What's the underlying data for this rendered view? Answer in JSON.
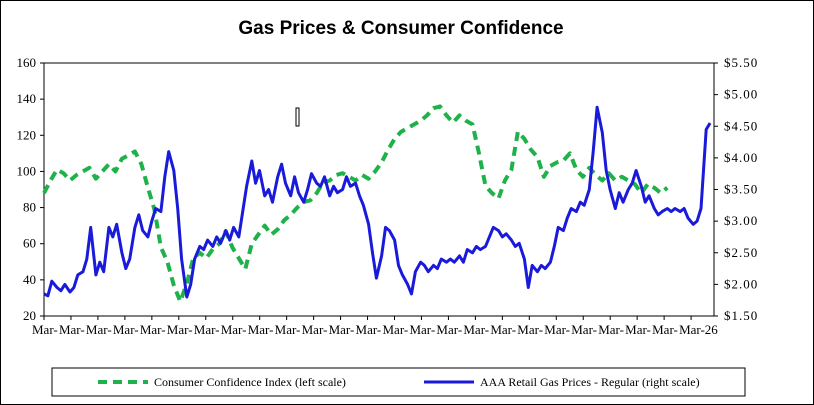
{
  "chart_data": {
    "type": "line",
    "title": "Gas Prices & Consumer Confidence",
    "legend_position": "bottom",
    "grid": false,
    "x_tick_labels": [
      "Mar-",
      "Mar-",
      "Mar-",
      "Mar-",
      "Mar-",
      "Mar-",
      "Mar-",
      "Mar-",
      "Mar-",
      "Mar-",
      "Mar-",
      "Mar-",
      "Mar-",
      "Mar-",
      "Mar-",
      "Mar-",
      "Mar-",
      "Mar-",
      "Mar-",
      "Mar-",
      "Mar-",
      "Mar-",
      "Mar-",
      "Mar-",
      "Mar-26"
    ],
    "y_left": {
      "min": 20,
      "max": 160,
      "ticks": [
        "20",
        "40",
        "60",
        "80",
        "100",
        "120",
        "140",
        "160"
      ]
    },
    "y_right": {
      "min": 1.5,
      "max": 5.5,
      "ticks": [
        "$1.50",
        "$2.00",
        "$2.50",
        "$3.00",
        "$3.50",
        "$4.00",
        "$4.50",
        "$5.00",
        "$5.50"
      ]
    },
    "series": [
      {
        "name": "Consumer Confidence Index (left scale)",
        "axis": "left",
        "color": "#1fb24a",
        "style": "dashed",
        "points": [
          [
            0,
            88
          ],
          [
            0.5,
            95
          ],
          [
            1,
            101
          ],
          [
            1.5,
            99
          ],
          [
            2,
            95
          ],
          [
            2.5,
            98
          ],
          [
            3,
            100
          ],
          [
            3.5,
            102
          ],
          [
            4,
            96
          ],
          [
            4.5,
            100
          ],
          [
            5,
            104
          ],
          [
            5.5,
            100
          ],
          [
            6,
            107
          ],
          [
            6.5,
            109
          ],
          [
            7,
            111
          ],
          [
            7.5,
            104
          ],
          [
            8,
            91
          ],
          [
            8.5,
            79
          ],
          [
            9,
            58
          ],
          [
            9.5,
            50
          ],
          [
            10,
            37
          ],
          [
            10.5,
            28
          ],
          [
            11,
            38
          ],
          [
            11.5,
            52
          ],
          [
            12,
            55
          ],
          [
            12.5,
            52
          ],
          [
            13,
            57
          ],
          [
            13.5,
            60
          ],
          [
            14,
            67
          ],
          [
            14.5,
            58
          ],
          [
            15,
            52
          ],
          [
            15.5,
            46
          ],
          [
            16,
            60
          ],
          [
            16.5,
            65
          ],
          [
            17,
            70
          ],
          [
            17.5,
            65
          ],
          [
            18,
            68
          ],
          [
            18.5,
            73
          ],
          [
            19,
            76
          ],
          [
            19.5,
            80
          ],
          [
            20,
            83
          ],
          [
            20.5,
            84
          ],
          [
            21,
            88
          ],
          [
            21.5,
            94
          ],
          [
            22,
            95
          ],
          [
            22.5,
            98
          ],
          [
            23,
            99
          ],
          [
            23.5,
            97
          ],
          [
            24,
            95
          ],
          [
            24.5,
            98
          ],
          [
            25,
            96
          ],
          [
            25.5,
            100
          ],
          [
            26,
            105
          ],
          [
            26.5,
            112
          ],
          [
            27,
            118
          ],
          [
            27.5,
            122
          ],
          [
            28,
            124
          ],
          [
            28.5,
            126
          ],
          [
            29,
            128
          ],
          [
            29.5,
            131
          ],
          [
            30,
            135
          ],
          [
            30.5,
            136
          ],
          [
            31,
            131
          ],
          [
            31.5,
            127
          ],
          [
            32,
            131
          ],
          [
            32.5,
            128
          ],
          [
            33,
            126
          ],
          [
            33.5,
            110
          ],
          [
            34,
            92
          ],
          [
            34.5,
            88
          ],
          [
            35,
            85
          ],
          [
            35.5,
            95
          ],
          [
            36,
            101
          ],
          [
            36.5,
            122
          ],
          [
            37,
            118
          ],
          [
            37.5,
            112
          ],
          [
            38,
            108
          ],
          [
            38.5,
            97
          ],
          [
            39,
            103
          ],
          [
            39.5,
            105
          ],
          [
            40,
            106
          ],
          [
            40.5,
            110
          ],
          [
            41,
            101
          ],
          [
            41.5,
            97
          ],
          [
            42,
            102
          ],
          [
            42.5,
            98
          ],
          [
            43,
            95
          ],
          [
            43.5,
            99
          ],
          [
            44,
            95
          ],
          [
            44.5,
            97
          ],
          [
            45,
            95
          ],
          [
            45.5,
            93
          ],
          [
            46,
            88
          ],
          [
            46.5,
            93
          ],
          [
            47,
            91
          ],
          [
            47.5,
            88
          ],
          [
            48,
            91
          ]
        ]
      },
      {
        "name": "AAA Retail Gas Prices - Regular (right scale)",
        "axis": "right",
        "color": "#1a1adb",
        "style": "solid",
        "points": [
          [
            0,
            1.85
          ],
          [
            0.3,
            1.82
          ],
          [
            0.6,
            2.05
          ],
          [
            1,
            1.95
          ],
          [
            1.3,
            1.9
          ],
          [
            1.6,
            2.0
          ],
          [
            2,
            1.88
          ],
          [
            2.3,
            1.95
          ],
          [
            2.6,
            2.15
          ],
          [
            3,
            2.2
          ],
          [
            3.3,
            2.4
          ],
          [
            3.6,
            2.9
          ],
          [
            4,
            2.15
          ],
          [
            4.3,
            2.35
          ],
          [
            4.6,
            2.2
          ],
          [
            5,
            2.9
          ],
          [
            5.3,
            2.75
          ],
          [
            5.6,
            2.95
          ],
          [
            6,
            2.5
          ],
          [
            6.3,
            2.25
          ],
          [
            6.6,
            2.4
          ],
          [
            7,
            2.9
          ],
          [
            7.3,
            3.1
          ],
          [
            7.6,
            2.85
          ],
          [
            8,
            2.75
          ],
          [
            8.3,
            3.0
          ],
          [
            8.6,
            3.2
          ],
          [
            9,
            3.15
          ],
          [
            9.3,
            3.7
          ],
          [
            9.6,
            4.1
          ],
          [
            10,
            3.8
          ],
          [
            10.3,
            3.2
          ],
          [
            10.6,
            2.4
          ],
          [
            11,
            1.8
          ],
          [
            11.3,
            2.0
          ],
          [
            11.6,
            2.4
          ],
          [
            12,
            2.6
          ],
          [
            12.3,
            2.55
          ],
          [
            12.6,
            2.7
          ],
          [
            13,
            2.6
          ],
          [
            13.3,
            2.75
          ],
          [
            13.6,
            2.65
          ],
          [
            14,
            2.85
          ],
          [
            14.3,
            2.7
          ],
          [
            14.6,
            2.9
          ],
          [
            15,
            2.75
          ],
          [
            15.3,
            3.15
          ],
          [
            15.6,
            3.55
          ],
          [
            16,
            3.95
          ],
          [
            16.3,
            3.6
          ],
          [
            16.6,
            3.8
          ],
          [
            17,
            3.4
          ],
          [
            17.3,
            3.5
          ],
          [
            17.6,
            3.3
          ],
          [
            18,
            3.7
          ],
          [
            18.3,
            3.9
          ],
          [
            18.6,
            3.6
          ],
          [
            19,
            3.4
          ],
          [
            19.3,
            3.7
          ],
          [
            19.6,
            3.45
          ],
          [
            20,
            3.3
          ],
          [
            20.3,
            3.5
          ],
          [
            20.6,
            3.75
          ],
          [
            21,
            3.6
          ],
          [
            21.3,
            3.55
          ],
          [
            21.6,
            3.7
          ],
          [
            22,
            3.4
          ],
          [
            22.3,
            3.55
          ],
          [
            22.6,
            3.45
          ],
          [
            23,
            3.5
          ],
          [
            23.3,
            3.7
          ],
          [
            23.6,
            3.55
          ],
          [
            24,
            3.6
          ],
          [
            24.3,
            3.4
          ],
          [
            24.6,
            3.25
          ],
          [
            25,
            2.95
          ],
          [
            25.3,
            2.5
          ],
          [
            25.6,
            2.1
          ],
          [
            26,
            2.45
          ],
          [
            26.3,
            2.9
          ],
          [
            26.6,
            2.85
          ],
          [
            27,
            2.7
          ],
          [
            27.3,
            2.3
          ],
          [
            27.6,
            2.15
          ],
          [
            28,
            2.0
          ],
          [
            28.3,
            1.85
          ],
          [
            28.6,
            2.2
          ],
          [
            29,
            2.35
          ],
          [
            29.3,
            2.3
          ],
          [
            29.6,
            2.2
          ],
          [
            30,
            2.3
          ],
          [
            30.3,
            2.25
          ],
          [
            30.6,
            2.4
          ],
          [
            31,
            2.35
          ],
          [
            31.3,
            2.4
          ],
          [
            31.6,
            2.35
          ],
          [
            32,
            2.45
          ],
          [
            32.3,
            2.35
          ],
          [
            32.6,
            2.55
          ],
          [
            33,
            2.5
          ],
          [
            33.3,
            2.6
          ],
          [
            33.6,
            2.55
          ],
          [
            34,
            2.6
          ],
          [
            34.3,
            2.75
          ],
          [
            34.6,
            2.9
          ],
          [
            35,
            2.85
          ],
          [
            35.3,
            2.75
          ],
          [
            35.6,
            2.8
          ],
          [
            36,
            2.7
          ],
          [
            36.3,
            2.6
          ],
          [
            36.6,
            2.65
          ],
          [
            37,
            2.4
          ],
          [
            37.3,
            1.95
          ],
          [
            37.6,
            2.3
          ],
          [
            38,
            2.2
          ],
          [
            38.3,
            2.3
          ],
          [
            38.6,
            2.25
          ],
          [
            39,
            2.35
          ],
          [
            39.3,
            2.6
          ],
          [
            39.6,
            2.9
          ],
          [
            40,
            2.85
          ],
          [
            40.3,
            3.05
          ],
          [
            40.6,
            3.2
          ],
          [
            41,
            3.15
          ],
          [
            41.3,
            3.3
          ],
          [
            41.6,
            3.25
          ],
          [
            42,
            3.5
          ],
          [
            42.3,
            4.1
          ],
          [
            42.6,
            4.8
          ],
          [
            43,
            4.4
          ],
          [
            43.3,
            3.8
          ],
          [
            43.6,
            3.5
          ],
          [
            44,
            3.2
          ],
          [
            44.3,
            3.45
          ],
          [
            44.6,
            3.3
          ],
          [
            45,
            3.5
          ],
          [
            45.3,
            3.6
          ],
          [
            45.6,
            3.8
          ],
          [
            46,
            3.55
          ],
          [
            46.3,
            3.3
          ],
          [
            46.6,
            3.4
          ],
          [
            47,
            3.2
          ],
          [
            47.3,
            3.1
          ],
          [
            47.6,
            3.15
          ],
          [
            48,
            3.2
          ],
          [
            48.3,
            3.15
          ],
          [
            48.6,
            3.2
          ],
          [
            49,
            3.15
          ],
          [
            49.3,
            3.2
          ],
          [
            49.6,
            3.05
          ],
          [
            50,
            2.95
          ],
          [
            50.3,
            3.0
          ],
          [
            50.6,
            3.2
          ],
          [
            51,
            4.45
          ],
          [
            51.3,
            4.55
          ]
        ]
      }
    ]
  }
}
